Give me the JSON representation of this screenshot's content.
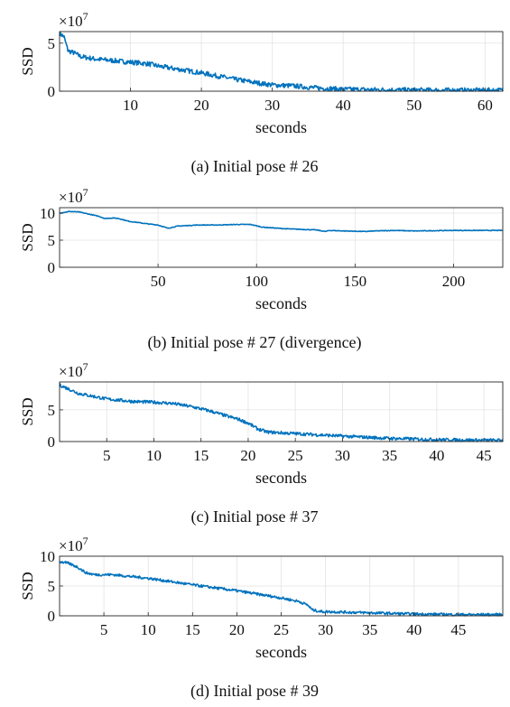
{
  "chart_data": [
    {
      "type": "line",
      "caption": "(a) Initial pose # 26",
      "xlabel": "seconds",
      "ylabel": "SSD",
      "y_multiplier": "×10",
      "y_exponent": "7",
      "xlim": [
        0,
        62.5
      ],
      "ylim": [
        0,
        6.2
      ],
      "xticks": [
        10,
        20,
        30,
        40,
        50,
        60
      ],
      "yticks": [
        0,
        5
      ],
      "grid": true,
      "noise": 0.25,
      "series": [
        {
          "color": "#0072bd",
          "x": [
            0,
            0.6,
            1.2,
            2,
            3,
            5,
            8,
            11,
            12.5,
            14,
            20,
            25,
            28,
            30,
            33,
            36,
            40,
            45,
            50,
            55,
            62.5
          ],
          "y": [
            6.0,
            5.7,
            4.2,
            4.0,
            3.6,
            3.35,
            3.15,
            2.95,
            2.85,
            2.6,
            1.9,
            1.2,
            0.85,
            0.65,
            0.55,
            0.35,
            0.2,
            0.15,
            0.12,
            0.1,
            0.1
          ]
        }
      ]
    },
    {
      "type": "line",
      "caption": "(b) Initial pose # 27 (divergence)",
      "xlabel": "seconds",
      "ylabel": "SSD",
      "y_multiplier": "×10",
      "y_exponent": "7",
      "xlim": [
        0,
        225
      ],
      "ylim": [
        0,
        11
      ],
      "xticks": [
        50,
        100,
        150,
        200
      ],
      "yticks": [
        0,
        5,
        10
      ],
      "grid": true,
      "noise": 0.06,
      "series": [
        {
          "color": "#0072bd",
          "x": [
            0,
            5,
            10,
            15,
            20,
            23,
            27,
            30,
            35,
            45,
            50,
            55,
            60,
            70,
            80,
            90,
            97,
            103,
            115,
            130,
            135,
            137,
            145,
            155,
            160,
            170,
            180,
            200,
            225
          ],
          "y": [
            10.0,
            10.3,
            10.2,
            9.8,
            9.4,
            9.0,
            9.1,
            9.0,
            8.5,
            8.0,
            7.8,
            7.2,
            7.6,
            7.8,
            7.8,
            7.9,
            7.9,
            7.4,
            7.1,
            6.9,
            6.6,
            6.8,
            6.7,
            6.6,
            6.7,
            6.8,
            6.7,
            6.8,
            6.8
          ]
        }
      ]
    },
    {
      "type": "line",
      "caption": "(c) Initial pose # 37",
      "xlabel": "seconds",
      "ylabel": "SSD",
      "y_multiplier": "×10",
      "y_exponent": "7",
      "xlim": [
        0,
        47
      ],
      "ylim": [
        0,
        9.4
      ],
      "xticks": [
        5,
        10,
        15,
        20,
        25,
        30,
        35,
        40,
        45
      ],
      "yticks": [
        0,
        5
      ],
      "grid": true,
      "noise": 0.25,
      "series": [
        {
          "color": "#0072bd",
          "x": [
            0,
            0.5,
            2,
            5,
            8,
            10,
            12,
            14,
            16,
            18,
            19,
            20,
            21,
            22,
            25,
            30,
            35,
            40,
            45,
            47
          ],
          "y": [
            8.9,
            8.6,
            7.6,
            6.7,
            6.3,
            6.2,
            6.0,
            5.5,
            4.8,
            3.9,
            3.5,
            2.9,
            2.0,
            1.5,
            1.25,
            0.85,
            0.5,
            0.3,
            0.2,
            0.2
          ]
        }
      ]
    },
    {
      "type": "line",
      "caption": "(d) Initial pose # 39",
      "xlabel": "seconds",
      "ylabel": "SSD",
      "y_multiplier": "×10",
      "y_exponent": "7",
      "xlim": [
        0,
        50
      ],
      "ylim": [
        0,
        10
      ],
      "xticks": [
        5,
        10,
        15,
        20,
        25,
        30,
        35,
        40,
        45
      ],
      "yticks": [
        0,
        5,
        10
      ],
      "grid": true,
      "noise": 0.22,
      "series": [
        {
          "color": "#0072bd",
          "x": [
            0,
            1,
            2,
            3,
            4,
            6,
            10,
            15,
            20,
            25,
            27,
            28,
            28.5,
            29.5,
            30,
            35,
            40,
            45,
            50
          ],
          "y": [
            9.1,
            8.8,
            8.2,
            7.2,
            6.9,
            6.9,
            6.3,
            5.2,
            4.2,
            3.0,
            2.4,
            1.8,
            1.0,
            0.7,
            0.7,
            0.5,
            0.3,
            0.2,
            0.2
          ]
        }
      ]
    }
  ]
}
